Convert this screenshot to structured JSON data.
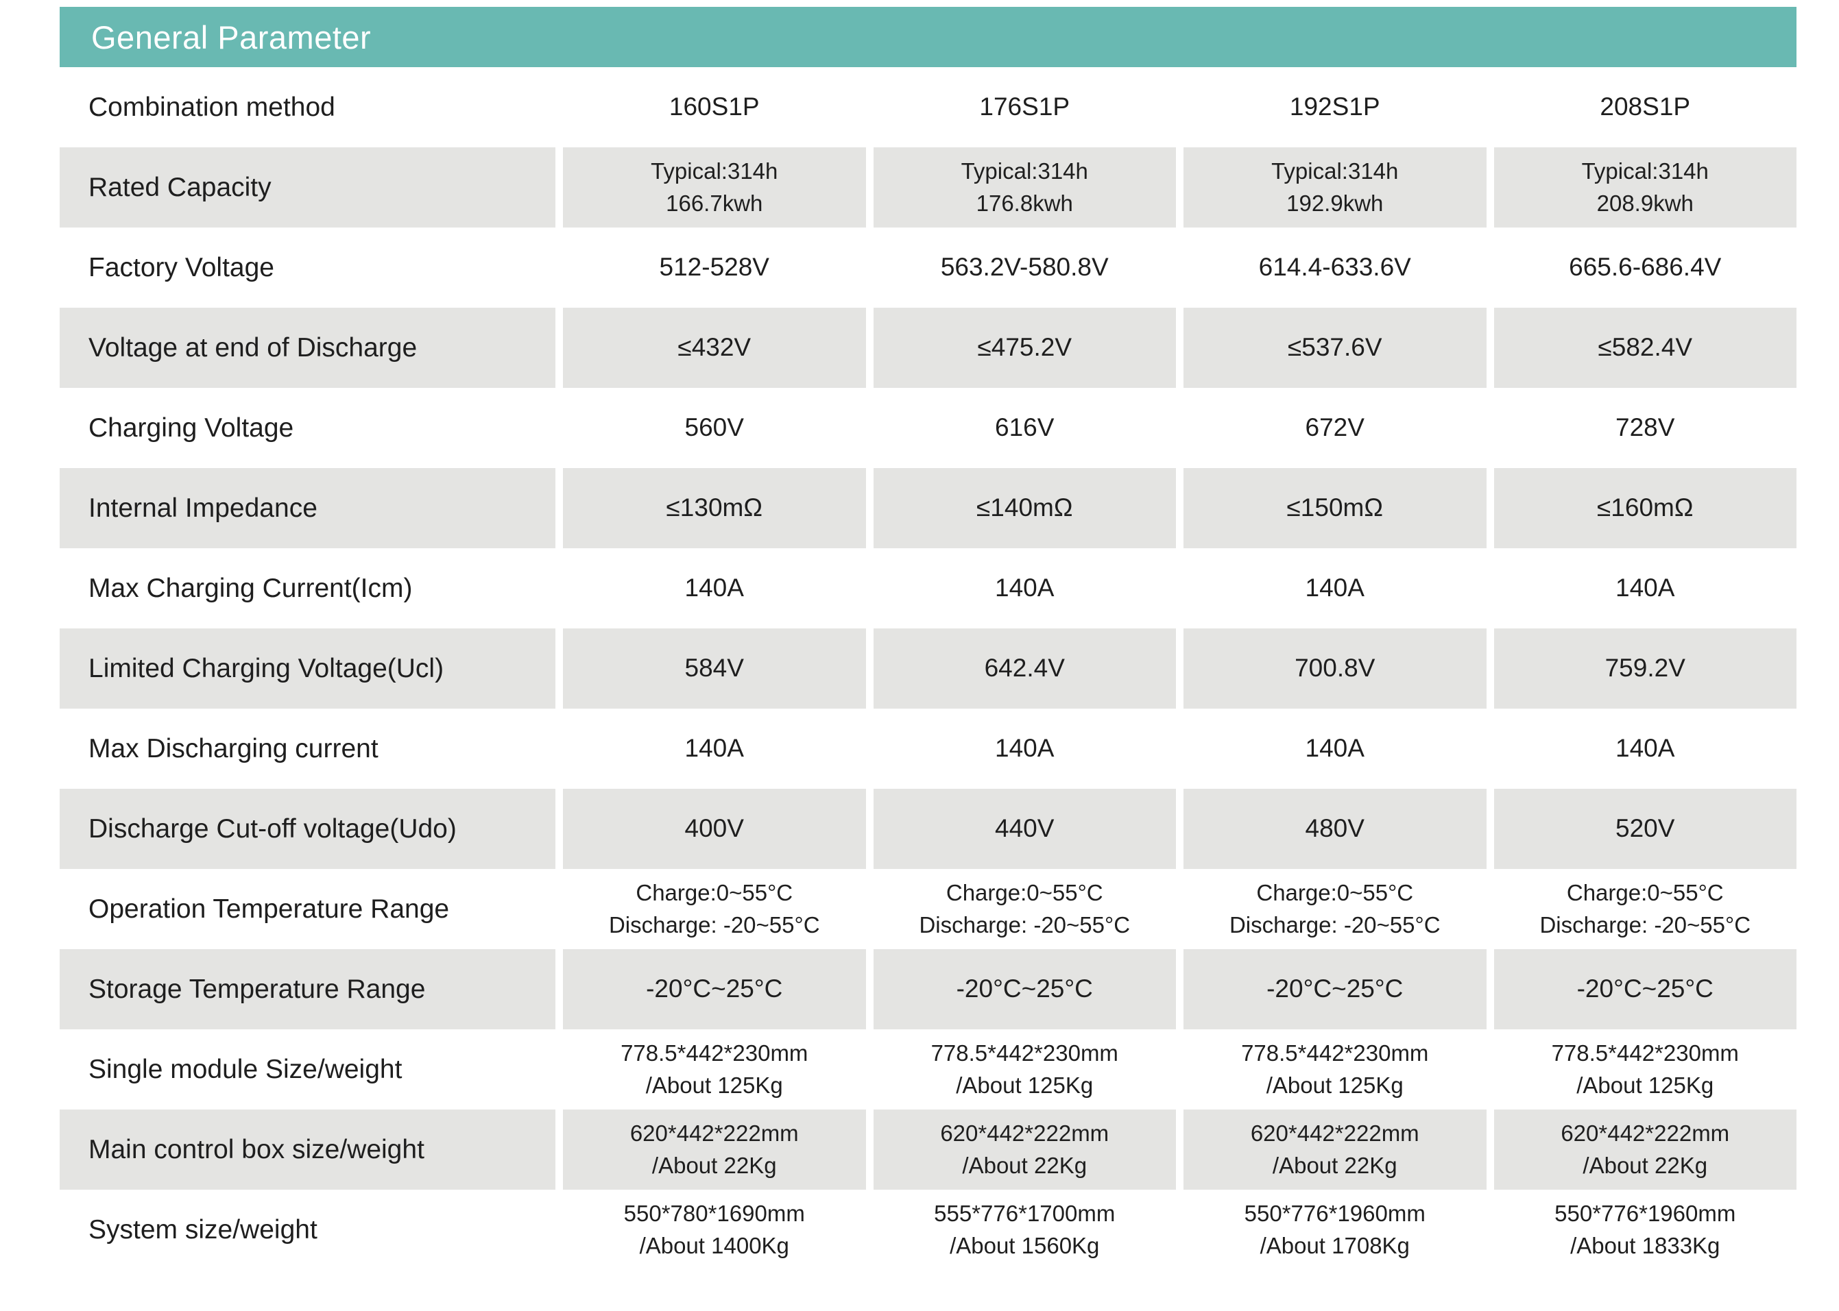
{
  "header": {
    "title": "General Parameter"
  },
  "colors": {
    "header_bg": "#69b9b2",
    "header_text": "#ffffff",
    "shaded_row_bg": "#e4e4e2",
    "text": "#1e1e1e"
  },
  "table": {
    "rows": [
      {
        "label": "Combination method",
        "shaded": false,
        "values": [
          "160S1P",
          "176S1P",
          "192S1P",
          "208S1P"
        ]
      },
      {
        "label": "Rated Capacity",
        "shaded": true,
        "values": [
          "Typical:314h\n166.7kwh",
          "Typical:314h\n176.8kwh",
          "Typical:314h\n192.9kwh",
          "Typical:314h\n208.9kwh"
        ]
      },
      {
        "label": "Factory Voltage",
        "shaded": false,
        "values": [
          "512-528V",
          "563.2V-580.8V",
          "614.4-633.6V",
          "665.6-686.4V"
        ]
      },
      {
        "label": "Voltage at end of Discharge",
        "shaded": true,
        "values": [
          "≤432V",
          "≤475.2V",
          "≤537.6V",
          "≤582.4V"
        ]
      },
      {
        "label": "Charging Voltage",
        "shaded": false,
        "values": [
          "560V",
          "616V",
          "672V",
          "728V"
        ]
      },
      {
        "label": "Internal Impedance",
        "shaded": true,
        "values": [
          "≤130mΩ",
          "≤140mΩ",
          "≤150mΩ",
          "≤160mΩ"
        ]
      },
      {
        "label": "Max Charging Current(Icm)",
        "shaded": false,
        "values": [
          "140A",
          "140A",
          "140A",
          "140A"
        ]
      },
      {
        "label": "Limited Charging Voltage(Ucl)",
        "shaded": true,
        "values": [
          "584V",
          "642.4V",
          "700.8V",
          "759.2V"
        ]
      },
      {
        "label": "Max Discharging current",
        "shaded": false,
        "values": [
          "140A",
          "140A",
          "140A",
          "140A"
        ]
      },
      {
        "label": "Discharge Cut-off voltage(Udo)",
        "shaded": true,
        "values": [
          "400V",
          "440V",
          "480V",
          "520V"
        ]
      },
      {
        "label": "Operation Temperature Range",
        "shaded": false,
        "values": [
          "Charge:0~55°C\nDischarge: -20~55°C",
          "Charge:0~55°C\nDischarge: -20~55°C",
          "Charge:0~55°C\nDischarge: -20~55°C",
          "Charge:0~55°C\nDischarge: -20~55°C"
        ]
      },
      {
        "label": "Storage Temperature Range",
        "shaded": true,
        "values": [
          "-20°C~25°C",
          "-20°C~25°C",
          "-20°C~25°C",
          "-20°C~25°C"
        ]
      },
      {
        "label": "Single module Size/weight",
        "shaded": false,
        "values": [
          "778.5*442*230mm\n/About 125Kg",
          "778.5*442*230mm\n/About 125Kg",
          "778.5*442*230mm\n/About 125Kg",
          "778.5*442*230mm\n/About 125Kg"
        ]
      },
      {
        "label": "Main control box size/weight",
        "shaded": true,
        "values": [
          "620*442*222mm\n/About 22Kg",
          "620*442*222mm\n/About 22Kg",
          "620*442*222mm\n/About 22Kg",
          "620*442*222mm\n/About 22Kg"
        ]
      },
      {
        "label": "System size/weight",
        "shaded": false,
        "values": [
          "550*780*1690mm\n/About 1400Kg",
          "555*776*1700mm\n/About 1560Kg",
          "550*776*1960mm\n/About 1708Kg",
          "550*776*1960mm\n/About 1833Kg"
        ]
      }
    ]
  }
}
